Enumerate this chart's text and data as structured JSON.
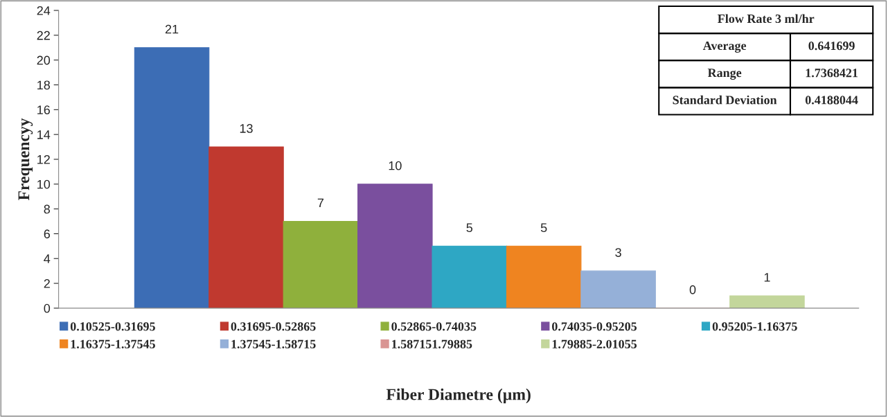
{
  "chart_data": {
    "type": "bar",
    "xlabel": "Fiber Diametre (µm)",
    "ylabel": "Frequencyy",
    "categories": [
      null
    ],
    "series": [
      {
        "name": "0.10525-0.31695",
        "color": "#3c6db5",
        "values": [
          21
        ]
      },
      {
        "name": "0.31695-0.52865",
        "color": "#c0392f",
        "values": [
          13
        ]
      },
      {
        "name": "0.52865-0.74035",
        "color": "#8fb03c",
        "values": [
          7
        ]
      },
      {
        "name": "0.74035-0.95205",
        "color": "#7a4f9e",
        "values": [
          10
        ]
      },
      {
        "name": "0.95205-1.16375",
        "color": "#2ea7c4",
        "values": [
          5
        ]
      },
      {
        "name": "1.16375-1.37545",
        "color": "#ef8420",
        "values": [
          5
        ]
      },
      {
        "name": "1.37545-1.58715",
        "color": "#95b0d8",
        "values": [
          3
        ]
      },
      {
        "name": "1.587151.79885",
        "color": "#d99593",
        "values": [
          0
        ]
      },
      {
        "name": "1.79885-2.01055",
        "color": "#c3d69b",
        "values": [
          1
        ]
      }
    ],
    "ylim": [
      0,
      24
    ],
    "yticks": [
      0,
      2,
      4,
      6,
      8,
      10,
      12,
      14,
      16,
      18,
      20,
      22,
      24
    ],
    "data_labels": true,
    "legend": "bottom",
    "grid": false,
    "annotations": [
      "Flow Rate 3 ml/hr",
      "Average",
      "0.641699",
      "Range",
      "1.7368421",
      "Standard Deviation",
      "0.4188044"
    ]
  }
}
